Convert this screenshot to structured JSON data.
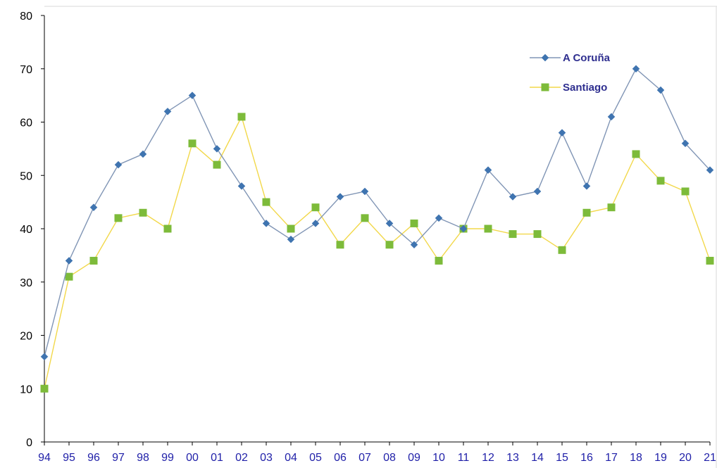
{
  "chart_data": {
    "type": "line",
    "categories": [
      "94",
      "95",
      "96",
      "97",
      "98",
      "99",
      "00",
      "01",
      "02",
      "03",
      "04",
      "05",
      "06",
      "07",
      "08",
      "09",
      "10",
      "11",
      "12",
      "13",
      "14",
      "15",
      "16",
      "17",
      "18",
      "19",
      "20",
      "21"
    ],
    "series": [
      {
        "name": "A Coruña",
        "color": "#3f74b0",
        "line_color": "#8095b5",
        "marker": "diamond",
        "values": [
          16,
          34,
          44,
          52,
          54,
          62,
          65,
          55,
          48,
          41,
          38,
          41,
          46,
          47,
          41,
          37,
          42,
          40,
          51,
          46,
          47,
          58,
          48,
          61,
          70,
          66,
          56,
          51
        ]
      },
      {
        "name": "Santiago",
        "color": "#7dbb3a",
        "line_color": "#f2d84a",
        "marker": "square",
        "values": [
          10,
          31,
          34,
          42,
          43,
          40,
          56,
          52,
          61,
          45,
          40,
          44,
          37,
          42,
          37,
          41,
          34,
          40,
          40,
          39,
          39,
          36,
          43,
          44,
          54,
          49,
          47,
          34
        ]
      }
    ],
    "y_ticks": [
      "0",
      "10",
      "20",
      "30",
      "40",
      "50",
      "60",
      "70",
      "80"
    ],
    "ylim": [
      0,
      80
    ],
    "grid": false,
    "legend_position": "top-right"
  }
}
